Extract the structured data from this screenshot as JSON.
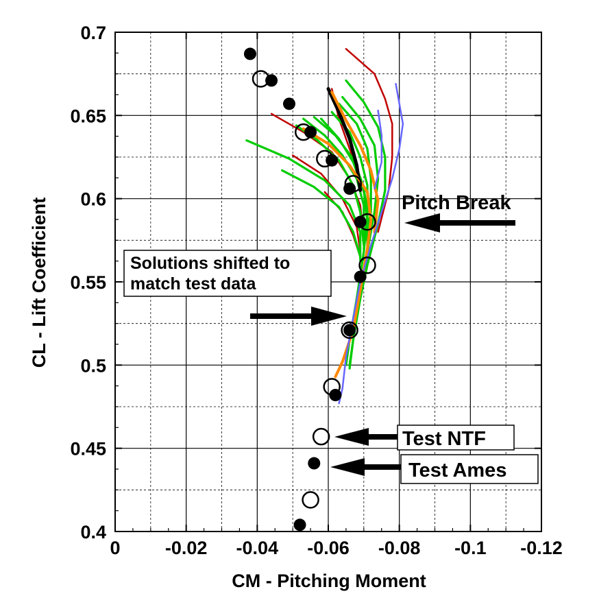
{
  "chart_data": {
    "type": "scatter",
    "xlabel": "CM - Pitching Moment",
    "ylabel": "CL - Lift Coefficient",
    "xlim": [
      0,
      -0.12
    ],
    "ylim": [
      0.4,
      0.7
    ],
    "x_ticks": [
      0,
      -0.02,
      -0.04,
      -0.06,
      -0.08,
      -0.1,
      -0.12
    ],
    "x_tick_labels": [
      "0",
      "-0.02",
      "-0.04",
      "-0.06",
      "-0.08",
      "-0.1",
      "-0.12"
    ],
    "y_ticks": [
      0.4,
      0.45,
      0.5,
      0.55,
      0.6,
      0.65,
      0.7
    ],
    "y_tick_labels": [
      "0.4",
      "0.45",
      "0.5",
      "0.55",
      "0.6",
      "0.65",
      "0.7"
    ],
    "grid": true,
    "colors": {
      "red": "#c00000",
      "green": "#00cc00",
      "black": "#000000",
      "orange": "#ff8800",
      "blue": "#6666ff"
    },
    "markers": {
      "test_ames": [
        [
          -0.038,
          0.687
        ],
        [
          -0.044,
          0.671
        ],
        [
          -0.049,
          0.657
        ],
        [
          -0.055,
          0.64
        ],
        [
          -0.061,
          0.623
        ],
        [
          -0.066,
          0.606
        ],
        [
          -0.069,
          0.586
        ],
        [
          -0.069,
          0.553
        ],
        [
          -0.066,
          0.521
        ],
        [
          -0.062,
          0.482
        ],
        [
          -0.056,
          0.441
        ],
        [
          -0.052,
          0.404
        ]
      ],
      "test_ntf": [
        [
          -0.041,
          0.672
        ],
        [
          -0.053,
          0.64
        ],
        [
          -0.059,
          0.624
        ],
        [
          -0.067,
          0.609
        ],
        [
          -0.071,
          0.586
        ],
        [
          -0.071,
          0.56
        ],
        [
          -0.066,
          0.521
        ],
        [
          -0.061,
          0.487
        ],
        [
          -0.058,
          0.457
        ],
        [
          -0.055,
          0.419
        ]
      ]
    },
    "series": [
      {
        "color": "red",
        "points": [
          [
            -0.065,
            0.69
          ],
          [
            -0.073,
            0.675
          ],
          [
            -0.076,
            0.66
          ],
          [
            -0.078,
            0.645
          ],
          [
            -0.078,
            0.625
          ],
          [
            -0.077,
            0.605
          ],
          [
            -0.074,
            0.58
          ]
        ]
      },
      {
        "color": "red",
        "points": [
          [
            -0.061,
            0.666
          ],
          [
            -0.063,
            0.648
          ],
          [
            -0.066,
            0.63
          ],
          [
            -0.069,
            0.612
          ],
          [
            -0.071,
            0.595
          ],
          [
            -0.071,
            0.575
          ]
        ]
      },
      {
        "color": "red",
        "points": [
          [
            -0.044,
            0.651
          ],
          [
            -0.053,
            0.64
          ],
          [
            -0.061,
            0.628
          ],
          [
            -0.066,
            0.612
          ],
          [
            -0.069,
            0.596
          ],
          [
            -0.07,
            0.576
          ]
        ]
      },
      {
        "color": "red",
        "points": [
          [
            -0.05,
            0.626
          ],
          [
            -0.058,
            0.615
          ],
          [
            -0.064,
            0.6
          ],
          [
            -0.068,
            0.583
          ],
          [
            -0.069,
            0.568
          ]
        ]
      },
      {
        "color": "red",
        "points": [
          [
            -0.059,
            0.604
          ],
          [
            -0.064,
            0.592
          ],
          [
            -0.067,
            0.578
          ],
          [
            -0.069,
            0.565
          ]
        ]
      },
      {
        "color": "green",
        "points": [
          [
            -0.065,
            0.671
          ],
          [
            -0.07,
            0.658
          ],
          [
            -0.074,
            0.643
          ],
          [
            -0.076,
            0.625
          ],
          [
            -0.076,
            0.605
          ],
          [
            -0.074,
            0.585
          ],
          [
            -0.071,
            0.56
          ],
          [
            -0.068,
            0.53
          ],
          [
            -0.066,
            0.5
          ]
        ]
      },
      {
        "color": "green",
        "points": [
          [
            -0.064,
            0.661
          ],
          [
            -0.069,
            0.648
          ],
          [
            -0.073,
            0.632
          ],
          [
            -0.074,
            0.612
          ],
          [
            -0.073,
            0.592
          ],
          [
            -0.071,
            0.568
          ]
        ]
      },
      {
        "color": "green",
        "points": [
          [
            -0.063,
            0.657
          ],
          [
            -0.068,
            0.645
          ],
          [
            -0.071,
            0.63
          ],
          [
            -0.072,
            0.612
          ],
          [
            -0.072,
            0.592
          ],
          [
            -0.07,
            0.572
          ]
        ]
      },
      {
        "color": "green",
        "points": [
          [
            -0.056,
            0.649
          ],
          [
            -0.062,
            0.638
          ],
          [
            -0.067,
            0.624
          ],
          [
            -0.07,
            0.607
          ],
          [
            -0.071,
            0.589
          ],
          [
            -0.07,
            0.57
          ]
        ]
      },
      {
        "color": "green",
        "points": [
          [
            -0.053,
            0.648
          ],
          [
            -0.059,
            0.638
          ],
          [
            -0.064,
            0.626
          ],
          [
            -0.068,
            0.612
          ],
          [
            -0.07,
            0.596
          ],
          [
            -0.07,
            0.576
          ]
        ]
      },
      {
        "color": "green",
        "points": [
          [
            -0.051,
            0.644
          ],
          [
            -0.057,
            0.635
          ],
          [
            -0.063,
            0.623
          ],
          [
            -0.067,
            0.608
          ],
          [
            -0.069,
            0.592
          ],
          [
            -0.07,
            0.572
          ]
        ]
      },
      {
        "color": "green",
        "points": [
          [
            -0.037,
            0.635
          ],
          [
            -0.049,
            0.624
          ],
          [
            -0.059,
            0.611
          ],
          [
            -0.066,
            0.596
          ],
          [
            -0.069,
            0.58
          ],
          [
            -0.069,
            0.563
          ]
        ]
      },
      {
        "color": "green",
        "points": [
          [
            -0.047,
            0.617
          ],
          [
            -0.056,
            0.607
          ],
          [
            -0.063,
            0.595
          ],
          [
            -0.067,
            0.58
          ],
          [
            -0.069,
            0.565
          ]
        ]
      },
      {
        "color": "green",
        "points": [
          [
            -0.061,
            0.652
          ],
          [
            -0.066,
            0.64
          ],
          [
            -0.069,
            0.625
          ],
          [
            -0.071,
            0.608
          ],
          [
            -0.071,
            0.59
          ],
          [
            -0.07,
            0.568
          ],
          [
            -0.068,
            0.54
          ],
          [
            -0.066,
            0.515
          ],
          [
            -0.065,
            0.5
          ]
        ]
      },
      {
        "color": "green",
        "points": [
          [
            -0.058,
            0.648
          ],
          [
            -0.063,
            0.636
          ],
          [
            -0.067,
            0.622
          ],
          [
            -0.07,
            0.605
          ],
          [
            -0.071,
            0.586
          ],
          [
            -0.071,
            0.565
          ],
          [
            -0.069,
            0.54
          ],
          [
            -0.067,
            0.515
          ],
          [
            -0.066,
            0.498
          ]
        ]
      },
      {
        "color": "black",
        "points": [
          [
            -0.06,
            0.666
          ],
          [
            -0.063,
            0.652
          ],
          [
            -0.066,
            0.636
          ],
          [
            -0.068,
            0.62
          ],
          [
            -0.069,
            0.605
          ]
        ]
      },
      {
        "color": "orange",
        "points": [
          [
            -0.053,
            0.642
          ],
          [
            -0.06,
            0.633
          ],
          [
            -0.066,
            0.62
          ],
          [
            -0.071,
            0.604
          ],
          [
            -0.072,
            0.587
          ],
          [
            -0.071,
            0.57
          ],
          [
            -0.069,
            0.545
          ],
          [
            -0.067,
            0.521
          ],
          [
            -0.064,
            0.502
          ],
          [
            -0.062,
            0.493
          ]
        ]
      },
      {
        "color": "orange",
        "points": [
          [
            -0.061,
            0.664
          ],
          [
            -0.065,
            0.647
          ],
          [
            -0.069,
            0.632
          ],
          [
            -0.072,
            0.617
          ],
          [
            -0.074,
            0.599
          ],
          [
            -0.073,
            0.58
          ]
        ]
      },
      {
        "color": "blue",
        "points": [
          [
            -0.079,
            0.669
          ],
          [
            -0.08,
            0.657
          ],
          [
            -0.081,
            0.645
          ],
          [
            -0.08,
            0.63
          ],
          [
            -0.078,
            0.612
          ],
          [
            -0.075,
            0.592
          ],
          [
            -0.072,
            0.572
          ],
          [
            -0.069,
            0.55
          ],
          [
            -0.067,
            0.528
          ],
          [
            -0.065,
            0.505
          ],
          [
            -0.064,
            0.486
          ],
          [
            -0.063,
            0.477
          ]
        ]
      },
      {
        "color": "blue",
        "points": [
          [
            -0.074,
            0.653
          ],
          [
            -0.075,
            0.638
          ],
          [
            -0.075,
            0.622
          ],
          [
            -0.073,
            0.606
          ]
        ]
      }
    ],
    "annotations": [
      {
        "text": "Pitch Break",
        "boxed": false
      },
      {
        "lines": [
          "Solutions shifted to",
          "match test data"
        ],
        "boxed": true
      },
      {
        "text": "Test NTF",
        "boxed": true
      },
      {
        "text": "Test Ames",
        "boxed": true
      }
    ]
  }
}
